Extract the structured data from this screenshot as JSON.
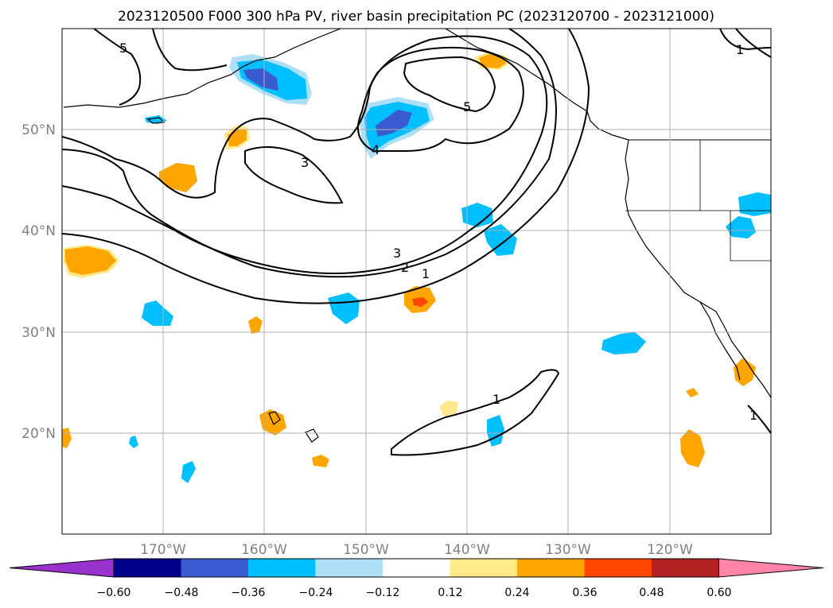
{
  "title": "2023120500 F000 300 hPa PV, river basin precipitation PC (2023120700 - 2023121000)",
  "map": {
    "projection": "PlateCarree",
    "lon_range": [
      -180,
      -110
    ],
    "lat_range": [
      10,
      60
    ],
    "gridlines": true,
    "lon_ticks": [
      {
        "lon": -170,
        "label": "170°W"
      },
      {
        "lon": -160,
        "label": "160°W"
      },
      {
        "lon": -150,
        "label": "150°W"
      },
      {
        "lon": -140,
        "label": "140°W"
      },
      {
        "lon": -130,
        "label": "130°W"
      },
      {
        "lon": -120,
        "label": "120°W"
      }
    ],
    "lat_ticks": [
      {
        "lat": 50,
        "label": "50°N"
      },
      {
        "lat": 40,
        "label": "40°N"
      },
      {
        "lat": 30,
        "label": "30°N"
      },
      {
        "lat": 20,
        "label": "20°N"
      }
    ],
    "contour_labels": [
      "5",
      "3",
      "4",
      "5",
      "3",
      "2",
      "1",
      "1",
      "1",
      "1"
    ]
  },
  "colorbar": {
    "extend": "both",
    "colors": [
      "#9932CC",
      "#00008B",
      "#3A5BCF",
      "#00BFFF",
      "#ADE0F8",
      "#FFFFFF",
      "#FFE98A",
      "#FFA500",
      "#FF4500",
      "#B22222",
      "#FF85A8"
    ],
    "ticks": [
      "−0.60",
      "−0.48",
      "−0.36",
      "−0.24",
      "−0.12",
      "0.12",
      "0.24",
      "0.36",
      "0.48",
      "0.60"
    ]
  }
}
